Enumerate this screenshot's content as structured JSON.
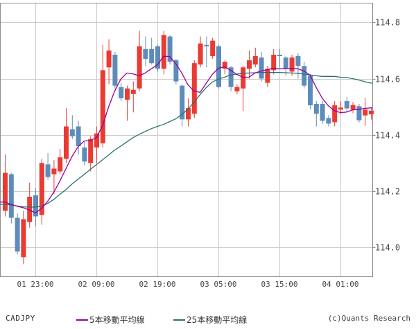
{
  "legend": {
    "symbol_label": "CADJPY",
    "ma5_label": "5本移動平均線",
    "ma25_label": "25本移動平均線"
  },
  "footer": {
    "copyright": "(c)Quants Research"
  },
  "colors": {
    "up_candle": "#ea3a31",
    "down_candle": "#5d8cba",
    "ma5": "#990099",
    "ma25": "#2a7070",
    "grid": "#cccccc",
    "axis_border": "#8c8c8c",
    "text": "#444444",
    "background": "#ffffff"
  },
  "chart_data": {
    "type": "candlestick",
    "pair": "CADJPY",
    "interval": "1 hour",
    "grid": true,
    "y_axis": {
      "side": "right",
      "tick_labels": [
        "114.8",
        "114.6",
        "114.4",
        "114.2",
        "114.0"
      ],
      "tick_values": [
        114.8,
        114.6,
        114.4,
        114.2,
        114.0
      ],
      "range": [
        113.9,
        114.87
      ]
    },
    "x_axis": {
      "tick_labels": [
        "01 23:00",
        "02 09:00",
        "02 19:00",
        "03 05:00",
        "03 15:00",
        "04 01:00"
      ],
      "tick_candle_indices": [
        5,
        15,
        25,
        35,
        45,
        55
      ]
    },
    "candles": [
      {
        "o": 114.13,
        "h": 114.33,
        "l": 114.11,
        "c": 114.265,
        "d": "up"
      },
      {
        "o": 114.26,
        "h": 114.265,
        "l": 114.085,
        "c": 114.105,
        "d": "down"
      },
      {
        "o": 114.105,
        "h": 114.12,
        "l": 113.975,
        "c": 113.985,
        "d": "down"
      },
      {
        "o": 113.965,
        "h": 114.13,
        "l": 113.94,
        "c": 114.1,
        "d": "up"
      },
      {
        "o": 114.09,
        "h": 114.23,
        "l": 114.07,
        "c": 114.18,
        "d": "up"
      },
      {
        "o": 114.185,
        "h": 114.21,
        "l": 114.075,
        "c": 114.11,
        "d": "down"
      },
      {
        "o": 114.115,
        "h": 114.315,
        "l": 114.08,
        "c": 114.3,
        "d": "up"
      },
      {
        "o": 114.295,
        "h": 114.335,
        "l": 114.24,
        "c": 114.25,
        "d": "down"
      },
      {
        "o": 114.26,
        "h": 114.31,
        "l": 114.19,
        "c": 114.28,
        "d": "up"
      },
      {
        "o": 114.27,
        "h": 114.35,
        "l": 114.26,
        "c": 114.32,
        "d": "up"
      },
      {
        "o": 114.315,
        "h": 114.495,
        "l": 114.3,
        "c": 114.43,
        "d": "up"
      },
      {
        "o": 114.42,
        "h": 114.47,
        "l": 114.385,
        "c": 114.395,
        "d": "down"
      },
      {
        "o": 114.43,
        "h": 114.45,
        "l": 114.33,
        "c": 114.36,
        "d": "down"
      },
      {
        "o": 114.355,
        "h": 114.375,
        "l": 114.29,
        "c": 114.305,
        "d": "down"
      },
      {
        "o": 114.3,
        "h": 114.395,
        "l": 114.27,
        "c": 114.385,
        "d": "up"
      },
      {
        "o": 114.355,
        "h": 114.43,
        "l": 114.3,
        "c": 114.405,
        "d": "up"
      },
      {
        "o": 114.37,
        "h": 114.72,
        "l": 114.355,
        "c": 114.63,
        "d": "up"
      },
      {
        "o": 114.64,
        "h": 114.74,
        "l": 114.58,
        "c": 114.7,
        "d": "up"
      },
      {
        "o": 114.685,
        "h": 114.695,
        "l": 114.565,
        "c": 114.575,
        "d": "down"
      },
      {
        "o": 114.57,
        "h": 114.585,
        "l": 114.52,
        "c": 114.53,
        "d": "down"
      },
      {
        "o": 114.525,
        "h": 114.575,
        "l": 114.45,
        "c": 114.565,
        "d": "up"
      },
      {
        "o": 114.545,
        "h": 114.59,
        "l": 114.48,
        "c": 114.56,
        "d": "up"
      },
      {
        "o": 114.565,
        "h": 114.77,
        "l": 114.555,
        "c": 114.715,
        "d": "up"
      },
      {
        "o": 114.705,
        "h": 114.75,
        "l": 114.645,
        "c": 114.67,
        "d": "down"
      },
      {
        "o": 114.705,
        "h": 114.745,
        "l": 114.65,
        "c": 114.655,
        "d": "down"
      },
      {
        "o": 114.715,
        "h": 114.72,
        "l": 114.625,
        "c": 114.635,
        "d": "down"
      },
      {
        "o": 114.635,
        "h": 114.77,
        "l": 114.615,
        "c": 114.755,
        "d": "up"
      },
      {
        "o": 114.75,
        "h": 114.755,
        "l": 114.65,
        "c": 114.66,
        "d": "down"
      },
      {
        "o": 114.665,
        "h": 114.67,
        "l": 114.58,
        "c": 114.59,
        "d": "down"
      },
      {
        "o": 114.575,
        "h": 114.58,
        "l": 114.43,
        "c": 114.455,
        "d": "down"
      },
      {
        "o": 114.455,
        "h": 114.53,
        "l": 114.43,
        "c": 114.495,
        "d": "up"
      },
      {
        "o": 114.475,
        "h": 114.665,
        "l": 114.46,
        "c": 114.655,
        "d": "up"
      },
      {
        "o": 114.65,
        "h": 114.75,
        "l": 114.64,
        "c": 114.725,
        "d": "up"
      },
      {
        "o": 114.72,
        "h": 114.75,
        "l": 114.64,
        "c": 114.715,
        "d": "down"
      },
      {
        "o": 114.68,
        "h": 114.745,
        "l": 114.67,
        "c": 114.735,
        "d": "up"
      },
      {
        "o": 114.715,
        "h": 114.72,
        "l": 114.565,
        "c": 114.57,
        "d": "down"
      },
      {
        "o": 114.635,
        "h": 114.665,
        "l": 114.615,
        "c": 114.66,
        "d": "up"
      },
      {
        "o": 114.64,
        "h": 114.645,
        "l": 114.555,
        "c": 114.57,
        "d": "down"
      },
      {
        "o": 114.555,
        "h": 114.58,
        "l": 114.545,
        "c": 114.57,
        "d": "up"
      },
      {
        "o": 114.565,
        "h": 114.645,
        "l": 114.485,
        "c": 114.64,
        "d": "up"
      },
      {
        "o": 114.635,
        "h": 114.7,
        "l": 114.6,
        "c": 114.665,
        "d": "up"
      },
      {
        "o": 114.65,
        "h": 114.71,
        "l": 114.64,
        "c": 114.68,
        "d": "up"
      },
      {
        "o": 114.675,
        "h": 114.695,
        "l": 114.59,
        "c": 114.6,
        "d": "down"
      },
      {
        "o": 114.585,
        "h": 114.645,
        "l": 114.57,
        "c": 114.635,
        "d": "up"
      },
      {
        "o": 114.63,
        "h": 114.705,
        "l": 114.615,
        "c": 114.685,
        "d": "up"
      },
      {
        "o": 114.685,
        "h": 114.705,
        "l": 114.64,
        "c": 114.68,
        "d": "down"
      },
      {
        "o": 114.675,
        "h": 114.68,
        "l": 114.61,
        "c": 114.635,
        "d": "down"
      },
      {
        "o": 114.625,
        "h": 114.685,
        "l": 114.61,
        "c": 114.675,
        "d": "up"
      },
      {
        "o": 114.68,
        "h": 114.69,
        "l": 114.6,
        "c": 114.645,
        "d": "down"
      },
      {
        "o": 114.645,
        "h": 114.66,
        "l": 114.565,
        "c": 114.575,
        "d": "down"
      },
      {
        "o": 114.61,
        "h": 114.615,
        "l": 114.49,
        "c": 114.505,
        "d": "down"
      },
      {
        "o": 114.51,
        "h": 114.52,
        "l": 114.43,
        "c": 114.475,
        "d": "down"
      },
      {
        "o": 114.51,
        "h": 114.52,
        "l": 114.44,
        "c": 114.45,
        "d": "down"
      },
      {
        "o": 114.46,
        "h": 114.47,
        "l": 114.43,
        "c": 114.44,
        "d": "down"
      },
      {
        "o": 114.445,
        "h": 114.52,
        "l": 114.43,
        "c": 114.505,
        "d": "up"
      },
      {
        "o": 114.49,
        "h": 114.52,
        "l": 114.473,
        "c": 114.497,
        "d": "up"
      },
      {
        "o": 114.52,
        "h": 114.535,
        "l": 114.48,
        "c": 114.494,
        "d": "down"
      },
      {
        "o": 114.49,
        "h": 114.517,
        "l": 114.477,
        "c": 114.506,
        "d": "up"
      },
      {
        "o": 114.502,
        "h": 114.51,
        "l": 114.444,
        "c": 114.452,
        "d": "down"
      },
      {
        "o": 114.469,
        "h": 114.531,
        "l": 114.432,
        "c": 114.49,
        "d": "up"
      },
      {
        "o": 114.473,
        "h": 114.495,
        "l": 114.454,
        "c": 114.486,
        "d": "up"
      }
    ],
    "ma5": [
      114.161,
      114.153,
      114.146,
      114.141,
      114.133,
      114.123,
      114.138,
      114.163,
      114.195,
      114.235,
      114.279,
      114.323,
      114.358,
      114.378,
      114.38,
      114.39,
      114.432,
      114.499,
      114.556,
      114.598,
      114.62,
      114.617,
      114.61,
      114.62,
      114.635,
      114.649,
      114.679,
      114.679,
      114.654,
      114.62,
      114.578,
      114.556,
      114.551,
      114.583,
      114.615,
      114.637,
      114.642,
      114.63,
      114.615,
      114.605,
      114.605,
      114.62,
      114.627,
      114.632,
      114.637,
      114.635,
      114.635,
      114.637,
      114.635,
      114.627,
      114.613,
      114.57,
      114.531,
      114.504,
      114.486,
      114.479,
      114.481,
      114.489,
      114.491,
      114.494,
      114.496
    ],
    "ma25": [
      114.153,
      114.151,
      114.147,
      114.144,
      114.143,
      114.143,
      114.146,
      114.156,
      114.17,
      114.188,
      114.205,
      114.225,
      114.242,
      114.259,
      114.277,
      114.294,
      114.311,
      114.328,
      114.346,
      114.36,
      114.375,
      114.39,
      114.402,
      114.412,
      114.422,
      114.43,
      114.437,
      114.447,
      114.457,
      114.472,
      114.491,
      114.516,
      114.543,
      114.568,
      114.588,
      114.598,
      114.605,
      114.613,
      114.616,
      114.619,
      114.62,
      114.621,
      114.622,
      114.622,
      114.622,
      114.622,
      114.621,
      114.62,
      114.619,
      114.616,
      114.613,
      114.61,
      114.608,
      114.608,
      114.608,
      114.605,
      114.604,
      114.6,
      114.595,
      114.589,
      114.584
    ]
  }
}
